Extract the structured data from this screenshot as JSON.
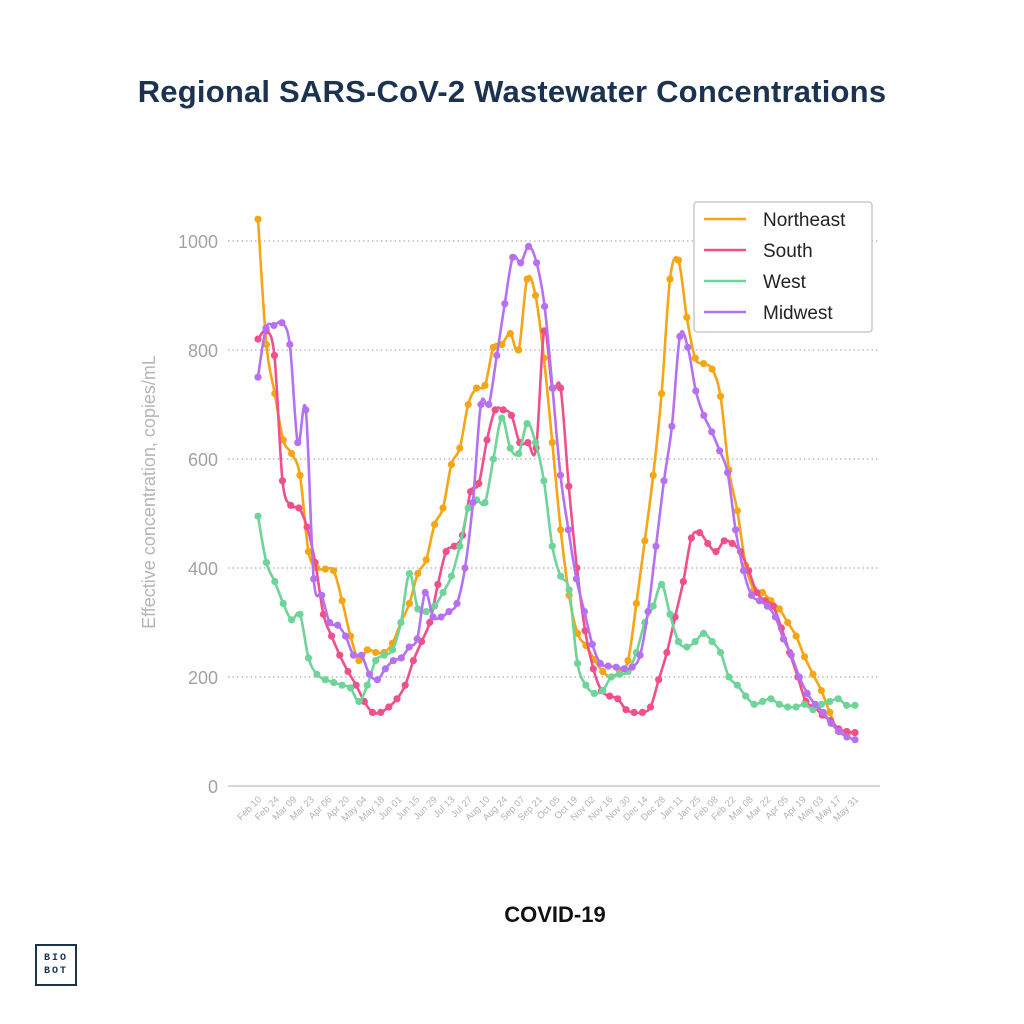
{
  "page": {
    "title": "Regional SARS-CoV-2 Wastewater Concentrations",
    "footer_label": "COVID-19",
    "logo": {
      "line1": "BIO",
      "line2": "BOT"
    }
  },
  "chart_data": {
    "type": "line",
    "title": "Regional SARS-CoV-2 Wastewater Concentrations",
    "ylabel": "Effective concentration, copies/mL",
    "xlabel": "",
    "ylim": [
      0,
      1050
    ],
    "yticks": [
      0,
      200,
      400,
      600,
      800,
      1000
    ],
    "grid": "horizontal-dotted",
    "legend_position": "top-right",
    "x_tick_labels": [
      "Feb 10",
      "Feb 24",
      "Mar 09",
      "Mar 23",
      "Apr 06",
      "Apr 20",
      "May 04",
      "May 18",
      "Jun 01",
      "Jun 15",
      "Jun 29",
      "Jul 13",
      "Jul 27",
      "Aug 10",
      "Aug 24",
      "Sep 07",
      "Sep 21",
      "Oct 05",
      "Oct 19",
      "Nov 02",
      "Nov 16",
      "Nov 30",
      "Dec 14",
      "Dec 28",
      "Jan 11",
      "Jan 25",
      "Feb 08",
      "Feb 22",
      "Mar 08",
      "Mar 22",
      "Apr 05",
      "Apr 19",
      "May 03",
      "May 17",
      "May 31"
    ],
    "x_points": 120,
    "series": [
      {
        "name": "Northeast",
        "color": "#f6a517",
        "values": [
          1040,
          810,
          720,
          635,
          610,
          570,
          430,
          400,
          398,
          395,
          340,
          275,
          230,
          250,
          245,
          245,
          262,
          300,
          335,
          390,
          415,
          480,
          510,
          590,
          620,
          700,
          730,
          735,
          805,
          810,
          830,
          800,
          930,
          900,
          785,
          630,
          470,
          350,
          280,
          258,
          232,
          210,
          200,
          210,
          230,
          335,
          450,
          570,
          720,
          930,
          965,
          860,
          785,
          775,
          765,
          715,
          580,
          505,
          405,
          360,
          355,
          340,
          325,
          300,
          275,
          237,
          205,
          175,
          135,
          100,
          95,
          98
        ]
      },
      {
        "name": "South",
        "color": "#f0508a",
        "values": [
          820,
          835,
          790,
          560,
          515,
          510,
          475,
          410,
          315,
          275,
          240,
          210,
          185,
          155,
          135,
          135,
          145,
          160,
          185,
          230,
          265,
          300,
          370,
          430,
          440,
          460,
          540,
          555,
          635,
          690,
          690,
          680,
          630,
          630,
          620,
          835,
          730,
          730,
          550,
          400,
          285,
          215,
          175,
          165,
          160,
          140,
          135,
          135,
          145,
          195,
          245,
          310,
          375,
          455,
          465,
          445,
          430,
          450,
          445,
          430,
          395,
          355,
          340,
          330,
          290,
          245,
          200,
          155,
          145,
          130,
          120,
          105,
          100,
          98
        ]
      },
      {
        "name": "West",
        "color": "#6fd49a",
        "values": [
          495,
          410,
          375,
          335,
          305,
          315,
          235,
          205,
          195,
          190,
          185,
          180,
          155,
          185,
          230,
          240,
          250,
          300,
          390,
          325,
          320,
          330,
          355,
          385,
          440,
          510,
          525,
          520,
          600,
          675,
          620,
          610,
          665,
          630,
          560,
          440,
          385,
          360,
          225,
          185,
          170,
          175,
          200,
          205,
          210,
          245,
          300,
          330,
          370,
          315,
          265,
          255,
          265,
          280,
          265,
          245,
          200,
          185,
          165,
          150,
          155,
          160,
          150,
          145,
          145,
          150,
          140,
          150,
          155,
          160,
          148,
          148
        ]
      },
      {
        "name": "Midwest",
        "color": "#b671f2",
        "values": [
          750,
          840,
          845,
          850,
          810,
          630,
          690,
          380,
          350,
          300,
          295,
          275,
          240,
          240,
          205,
          195,
          215,
          230,
          235,
          255,
          270,
          355,
          310,
          310,
          320,
          335,
          400,
          520,
          700,
          700,
          790,
          885,
          970,
          960,
          990,
          960,
          880,
          730,
          570,
          470,
          380,
          320,
          260,
          225,
          220,
          218,
          215,
          218,
          240,
          320,
          440,
          560,
          660,
          825,
          805,
          725,
          680,
          650,
          615,
          575,
          470,
          395,
          350,
          340,
          330,
          310,
          270,
          240,
          200,
          170,
          150,
          135,
          115,
          100,
          90,
          85
        ]
      }
    ]
  }
}
